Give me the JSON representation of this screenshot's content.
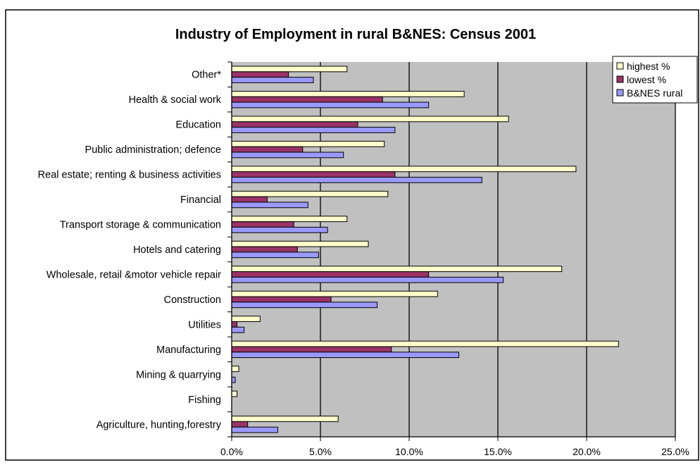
{
  "chart_data": {
    "type": "bar",
    "orientation": "horizontal",
    "title": "Industry of Employment in rural B&NES: Census 2001",
    "xlabel": "",
    "ylabel": "",
    "xlim": [
      0,
      0.25
    ],
    "tick_values": [
      0,
      0.05,
      0.1,
      0.15,
      0.2,
      0.25
    ],
    "tick_labels": [
      "0.0%",
      "5.0%",
      "10.0%",
      "15.0%",
      "20.0%",
      "25.0%"
    ],
    "grid": "vertical major gridlines",
    "legend_position": "top-right",
    "categories": [
      "Other*",
      "Health & social work",
      "Education",
      "Public administration; defence",
      "Real estate; renting & business activities",
      "Financial",
      "Transport storage & communication",
      "Hotels and catering",
      "Wholesale, retail &motor vehicle repair",
      "Construction",
      "Utilities",
      "Manufacturing",
      "Mining & quarrying",
      "Fishing",
      "Agriculture, hunting,forestry"
    ],
    "series": [
      {
        "name": "highest %",
        "color": "#ffffcc",
        "values": [
          0.065,
          0.131,
          0.156,
          0.086,
          0.194,
          0.088,
          0.065,
          0.077,
          0.186,
          0.116,
          0.016,
          0.218,
          0.004,
          0.003,
          0.06
        ]
      },
      {
        "name": "lowest %",
        "color": "#993366",
        "values": [
          0.032,
          0.085,
          0.071,
          0.04,
          0.092,
          0.02,
          0.035,
          0.037,
          0.111,
          0.056,
          0.003,
          0.09,
          0.0,
          0.0,
          0.009
        ]
      },
      {
        "name": "B&NES rural",
        "color": "#9999ff",
        "values": [
          0.046,
          0.111,
          0.092,
          0.063,
          0.141,
          0.043,
          0.054,
          0.049,
          0.153,
          0.082,
          0.007,
          0.128,
          0.002,
          0.0,
          0.026
        ]
      }
    ]
  },
  "colors": {
    "plot_background": "#c0c0c0",
    "gridline": "#000000",
    "frame": "#000000"
  }
}
